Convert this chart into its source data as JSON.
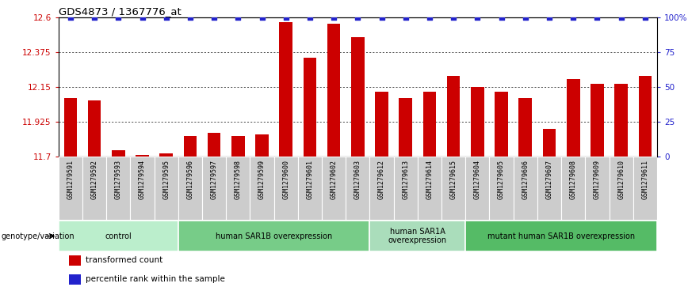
{
  "title": "GDS4873 / 1367776_at",
  "samples": [
    "GSM1279591",
    "GSM1279592",
    "GSM1279593",
    "GSM1279594",
    "GSM1279595",
    "GSM1279596",
    "GSM1279597",
    "GSM1279598",
    "GSM1279599",
    "GSM1279600",
    "GSM1279601",
    "GSM1279602",
    "GSM1279603",
    "GSM1279612",
    "GSM1279613",
    "GSM1279614",
    "GSM1279615",
    "GSM1279604",
    "GSM1279605",
    "GSM1279606",
    "GSM1279607",
    "GSM1279608",
    "GSM1279609",
    "GSM1279610",
    "GSM1279611"
  ],
  "bar_values": [
    12.08,
    12.06,
    11.74,
    11.71,
    11.72,
    11.83,
    11.85,
    11.83,
    11.84,
    12.57,
    12.34,
    12.56,
    12.47,
    12.12,
    12.08,
    12.12,
    12.22,
    12.15,
    12.12,
    12.08,
    11.88,
    12.2,
    12.17,
    12.17,
    12.22
  ],
  "bar_color": "#cc0000",
  "percentile_color": "#2222cc",
  "ymin": 11.7,
  "ymax": 12.6,
  "yticks": [
    11.7,
    11.925,
    12.15,
    12.375,
    12.6
  ],
  "ytick_labels": [
    "11.7",
    "11.925",
    "12.15",
    "12.375",
    "12.6"
  ],
  "right_yticks": [
    0,
    25,
    50,
    75,
    100
  ],
  "right_ytick_labels": [
    "0",
    "25",
    "50",
    "75",
    "100%"
  ],
  "groups": [
    {
      "label": "control",
      "start": 0,
      "end": 4,
      "color": "#bbeecc"
    },
    {
      "label": "human SAR1B overexpression",
      "start": 5,
      "end": 12,
      "color": "#77cc88"
    },
    {
      "label": "human SAR1A\noverexpression",
      "start": 13,
      "end": 16,
      "color": "#aaddbb"
    },
    {
      "label": "mutant human SAR1B overexpression",
      "start": 17,
      "end": 24,
      "color": "#55bb66"
    }
  ],
  "xlabel_left": "genotype/variation",
  "legend_items": [
    {
      "color": "#cc0000",
      "label": "transformed count"
    },
    {
      "color": "#2222cc",
      "label": "percentile rank within the sample"
    }
  ],
  "tick_bg_color": "#cccccc",
  "bg_color": "#ffffff"
}
